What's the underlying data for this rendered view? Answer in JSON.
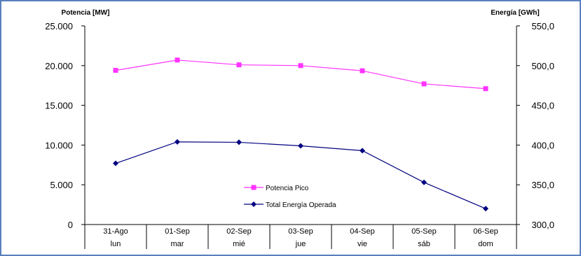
{
  "chart_data": {
    "type": "line",
    "categories": [
      "31-Ago",
      "01-Sep",
      "02-Sep",
      "03-Sep",
      "04-Sep",
      "05-Sep",
      "06-Sep"
    ],
    "sublabels": [
      "lun",
      "mar",
      "mié",
      "jue",
      "vie",
      "sáb",
      "dom"
    ],
    "left_axis": {
      "title": "Potencia [MW]",
      "ylim": [
        0,
        25000
      ],
      "ticks": [
        0,
        5000,
        10000,
        15000,
        20000,
        25000
      ],
      "tick_labels": [
        "0",
        "5.000",
        "10.000",
        "15.000",
        "20.000",
        "25.000"
      ]
    },
    "right_axis": {
      "title": "Energía [GWh]",
      "ylim": [
        300,
        550
      ],
      "ticks": [
        300,
        350,
        400,
        450,
        500,
        550
      ],
      "tick_labels": [
        "300,0",
        "350,0",
        "400,0",
        "450,0",
        "500,0",
        "550,0"
      ]
    },
    "series": [
      {
        "name": "Potencia Pico",
        "axis": "left",
        "color": "#ff33ff",
        "marker": "square",
        "values": [
          19400,
          20700,
          20100,
          20000,
          19350,
          17700,
          17100
        ]
      },
      {
        "name": "Total Energía Operada",
        "axis": "right",
        "color": "#000080",
        "marker": "diamond",
        "values": [
          377,
          404,
          403.5,
          399,
          393,
          353,
          320
        ]
      }
    ],
    "grid": false,
    "legend_placement": "bottom-center-inside"
  }
}
